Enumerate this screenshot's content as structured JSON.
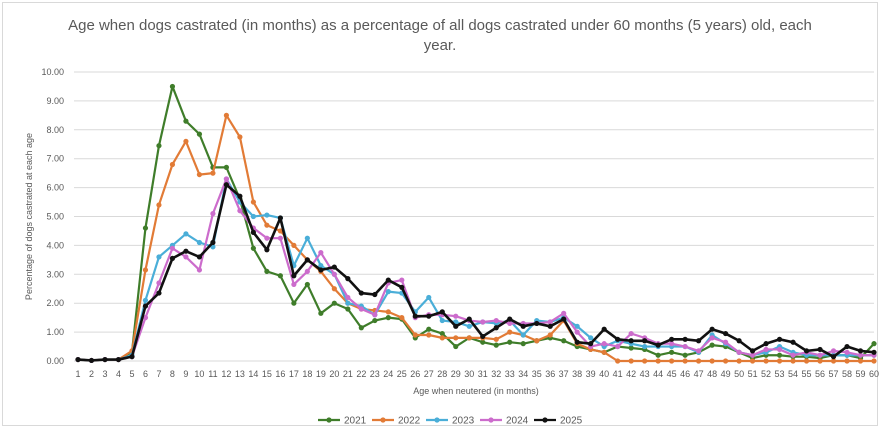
{
  "chart_data": {
    "type": "line",
    "title": "Age when dogs castrated (in months) as a percentage of all dogs castrated under 60 months (5 years) old, each year.",
    "xlabel": "Age when neutered (in months)",
    "ylabel": "Percentage of dogs castrated at each age",
    "ylim": [
      0,
      10
    ],
    "y_ticks": [
      "0.00",
      "1.00",
      "2.00",
      "3.00",
      "4.00",
      "5.00",
      "6.00",
      "7.00",
      "8.00",
      "9.00",
      "10.00"
    ],
    "grid": "horizontal",
    "legend_position": "bottom",
    "x": [
      1,
      2,
      3,
      4,
      5,
      6,
      7,
      8,
      9,
      10,
      11,
      12,
      13,
      14,
      15,
      16,
      17,
      18,
      19,
      20,
      21,
      22,
      23,
      24,
      25,
      26,
      27,
      28,
      29,
      30,
      31,
      32,
      33,
      34,
      35,
      36,
      37,
      38,
      39,
      40,
      41,
      42,
      43,
      44,
      45,
      46,
      47,
      48,
      49,
      50,
      51,
      52,
      53,
      54,
      55,
      56,
      57,
      58,
      59,
      60
    ],
    "series": [
      {
        "name": "2021",
        "color": "#3f7d2a",
        "values": [
          0.05,
          0.02,
          0.05,
          0.05,
          0.3,
          4.6,
          7.45,
          9.5,
          8.3,
          7.85,
          6.7,
          6.7,
          5.6,
          3.9,
          3.1,
          2.95,
          2.0,
          2.65,
          1.65,
          2.0,
          1.8,
          1.15,
          1.4,
          1.5,
          1.45,
          0.8,
          1.1,
          0.95,
          0.5,
          0.8,
          0.65,
          0.55,
          0.65,
          0.6,
          0.7,
          0.8,
          0.7,
          0.5,
          0.4,
          0.3,
          0.5,
          0.45,
          0.4,
          0.2,
          0.3,
          0.2,
          0.3,
          0.55,
          0.5,
          0.3,
          0.1,
          0.2,
          0.2,
          0.15,
          0.15,
          0.1,
          0.2,
          0.2,
          0.1,
          0.6
        ]
      },
      {
        "name": "2022",
        "color": "#e27b36",
        "values": [
          0.05,
          0.02,
          0.05,
          0.05,
          0.35,
          3.15,
          5.4,
          6.8,
          7.6,
          6.45,
          6.5,
          8.5,
          7.75,
          5.5,
          4.7,
          4.5,
          4.0,
          3.5,
          3.1,
          2.5,
          2.0,
          1.8,
          1.75,
          1.7,
          1.5,
          0.9,
          0.9,
          0.8,
          0.8,
          0.8,
          0.8,
          0.75,
          1.0,
          0.9,
          0.7,
          0.9,
          1.4,
          0.6,
          0.4,
          0.3,
          0.0,
          0.0,
          0.0,
          0.0,
          0.0,
          0.0,
          0.0,
          0.0,
          0.0,
          0.0,
          0.0,
          0.0,
          0.0,
          0.0,
          0.0,
          0.0,
          0.0,
          0.0,
          0.0,
          0.0
        ]
      },
      {
        "name": "2023",
        "color": "#4aaed8",
        "values": [
          0.05,
          0.02,
          0.05,
          0.05,
          0.2,
          2.1,
          3.6,
          4.0,
          4.4,
          4.1,
          3.95,
          6.3,
          5.5,
          5.0,
          5.05,
          4.95,
          3.3,
          4.25,
          3.3,
          3.0,
          2.0,
          1.9,
          1.6,
          2.4,
          2.35,
          1.7,
          2.2,
          1.4,
          1.35,
          1.2,
          1.35,
          1.3,
          1.4,
          0.9,
          1.4,
          1.35,
          1.5,
          1.2,
          0.8,
          0.5,
          0.7,
          0.6,
          0.5,
          0.5,
          0.5,
          0.5,
          0.3,
          0.9,
          0.6,
          0.3,
          0.2,
          0.3,
          0.5,
          0.3,
          0.2,
          0.2,
          0.2,
          0.2,
          0.2,
          0.2
        ]
      },
      {
        "name": "2024",
        "color": "#cc6ccc",
        "values": [
          0.05,
          0.02,
          0.05,
          0.05,
          0.15,
          1.5,
          2.7,
          3.9,
          3.6,
          3.15,
          5.1,
          6.3,
          5.2,
          4.6,
          4.25,
          4.25,
          2.65,
          3.1,
          3.75,
          3.0,
          2.2,
          1.8,
          1.6,
          2.7,
          2.8,
          1.5,
          1.6,
          1.6,
          1.55,
          1.4,
          1.35,
          1.4,
          1.3,
          1.3,
          1.3,
          1.35,
          1.65,
          1.0,
          0.5,
          0.6,
          0.5,
          0.95,
          0.8,
          0.6,
          0.6,
          0.5,
          0.35,
          0.8,
          0.65,
          0.3,
          0.2,
          0.4,
          0.4,
          0.2,
          0.3,
          0.2,
          0.35,
          0.3,
          0.2,
          0.2
        ]
      },
      {
        "name": "2025",
        "color": "#111111",
        "values": [
          0.05,
          0.02,
          0.05,
          0.05,
          0.15,
          1.9,
          2.35,
          3.55,
          3.8,
          3.6,
          4.1,
          6.1,
          5.7,
          4.45,
          3.85,
          4.95,
          2.95,
          3.5,
          3.15,
          3.25,
          2.85,
          2.35,
          2.3,
          2.8,
          2.55,
          1.55,
          1.55,
          1.7,
          1.2,
          1.45,
          0.85,
          1.15,
          1.45,
          1.2,
          1.3,
          1.2,
          1.45,
          0.65,
          0.6,
          1.1,
          0.75,
          0.7,
          0.7,
          0.55,
          0.75,
          0.75,
          0.7,
          1.1,
          0.95,
          0.7,
          0.35,
          0.6,
          0.75,
          0.65,
          0.35,
          0.4,
          0.15,
          0.5,
          0.35,
          0.3
        ]
      }
    ]
  }
}
